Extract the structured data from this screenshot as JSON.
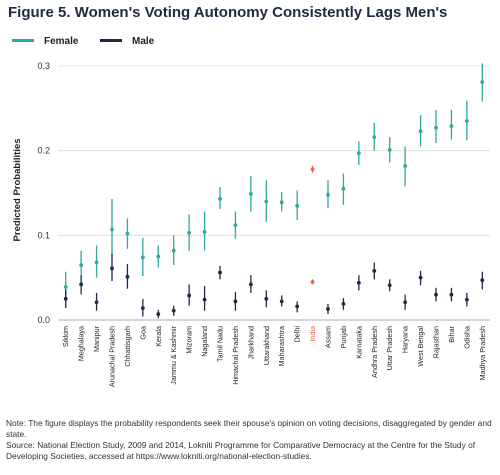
{
  "figure": {
    "title": "Figure 5. Women's Voting Autonomy Consistently Lags Men's",
    "note": "Note: The figure displays the probability respondents seek their spouse's opinion on voting decisions, disaggregated by gender and state.",
    "source": "Source: National Election Study, 2009 and 2014, Lokniti Programme for Comparative Democracy at the Centre for the Study of Developing Societies, accessed at https://www.lokniti.org/national-election-studies."
  },
  "chart_data": {
    "type": "scatter",
    "subtype": "point-range",
    "title": "Figure 5. Women's Voting Autonomy Consistently Lags Men's",
    "ylabel": "Predicted Probabilities",
    "xlabel": "",
    "ylim": [
      0,
      0.3
    ],
    "yticks": [
      "0.0",
      "0.1",
      "0.2",
      "0.3"
    ],
    "grid": true,
    "legend_position": "top-left",
    "categories": [
      "Sikkim",
      "Meghalaya",
      "Manipur",
      "Arunachal Pradesh",
      "Chhattisgarh",
      "Goa",
      "Kerala",
      "Jammu & Kashmir",
      "Mizoram",
      "Nagaland",
      "Tamil Nadu",
      "Himachal Pradesh",
      "Jharkhand",
      "Uttarakhand",
      "Maharashtra",
      "Delhi",
      "India",
      "Assam",
      "Punjab",
      "Karnataka",
      "Andhra Pradesh",
      "Uttar Pradesh",
      "Haryana",
      "West Bengal",
      "Rajasthan",
      "Bihar",
      "Odisha",
      "Madhya Pradesh"
    ],
    "highlight_category": "India",
    "highlight_color": "#e8604c",
    "series": [
      {
        "name": "Female",
        "color": "#2fa99a",
        "values": [
          0.039,
          0.065,
          0.068,
          0.107,
          0.102,
          0.074,
          0.075,
          0.082,
          0.103,
          0.104,
          0.143,
          0.112,
          0.149,
          0.14,
          0.139,
          0.135,
          0.178,
          0.148,
          0.155,
          0.197,
          0.216,
          0.201,
          0.182,
          0.223,
          0.227,
          0.229,
          0.235,
          0.281
        ],
        "lower": [
          0.022,
          0.05,
          0.05,
          0.074,
          0.084,
          0.052,
          0.062,
          0.065,
          0.082,
          0.082,
          0.131,
          0.096,
          0.128,
          0.116,
          0.128,
          0.118,
          0.174,
          0.132,
          0.136,
          0.183,
          0.2,
          0.186,
          0.158,
          0.205,
          0.209,
          0.213,
          0.212,
          0.258
        ],
        "upper": [
          0.057,
          0.082,
          0.088,
          0.143,
          0.12,
          0.097,
          0.088,
          0.1,
          0.125,
          0.128,
          0.157,
          0.128,
          0.17,
          0.165,
          0.151,
          0.153,
          0.182,
          0.165,
          0.173,
          0.211,
          0.233,
          0.216,
          0.205,
          0.242,
          0.248,
          0.248,
          0.259,
          0.303
        ]
      },
      {
        "name": "Male",
        "color": "#1f2a44",
        "values": [
          0.025,
          0.042,
          0.021,
          0.061,
          0.051,
          0.014,
          0.007,
          0.011,
          0.029,
          0.024,
          0.056,
          0.022,
          0.042,
          0.025,
          0.022,
          0.016,
          0.045,
          0.013,
          0.019,
          0.044,
          0.058,
          0.041,
          0.021,
          0.05,
          0.03,
          0.03,
          0.024,
          0.047
        ],
        "lower": [
          0.014,
          0.03,
          0.011,
          0.046,
          0.037,
          0.004,
          0.002,
          0.005,
          0.017,
          0.011,
          0.048,
          0.011,
          0.032,
          0.015,
          0.016,
          0.009,
          0.042,
          0.007,
          0.012,
          0.035,
          0.048,
          0.034,
          0.012,
          0.041,
          0.022,
          0.022,
          0.016,
          0.036
        ],
        "upper": [
          0.036,
          0.053,
          0.032,
          0.078,
          0.066,
          0.025,
          0.012,
          0.017,
          0.042,
          0.04,
          0.064,
          0.033,
          0.053,
          0.035,
          0.029,
          0.022,
          0.048,
          0.019,
          0.026,
          0.053,
          0.068,
          0.048,
          0.03,
          0.058,
          0.038,
          0.038,
          0.032,
          0.057
        ]
      }
    ]
  }
}
